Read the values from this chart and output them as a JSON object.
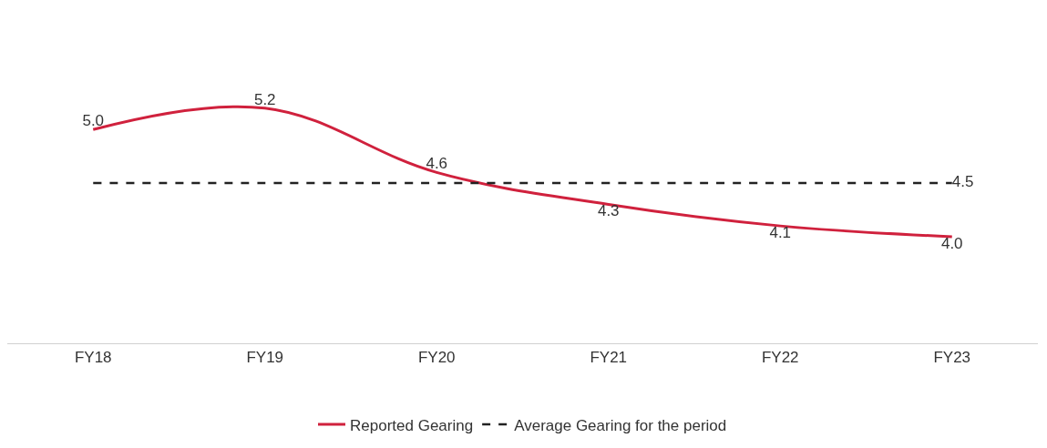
{
  "chart_data": {
    "type": "line",
    "categories": [
      "FY18",
      "FY19",
      "FY20",
      "FY21",
      "FY22",
      "FY23"
    ],
    "legend": "bottom",
    "grid": false,
    "marker": "none",
    "series": [
      {
        "name": "Reported Gearing",
        "color": "#d0213d",
        "line_style": "solid",
        "values": [
          5.0,
          5.2,
          4.6,
          4.3,
          4.1,
          4.0
        ],
        "value_labels": [
          "5.0",
          "5.2",
          "4.6",
          "4.3",
          "4.1",
          "4.0"
        ]
      },
      {
        "name": "Average Gearing for the period",
        "color": "#222222",
        "line_style": "dashed",
        "values": [
          4.5,
          4.5,
          4.5,
          4.5,
          4.5,
          4.5
        ],
        "value_labels": [
          null,
          null,
          null,
          null,
          null,
          "4.5"
        ]
      }
    ]
  }
}
